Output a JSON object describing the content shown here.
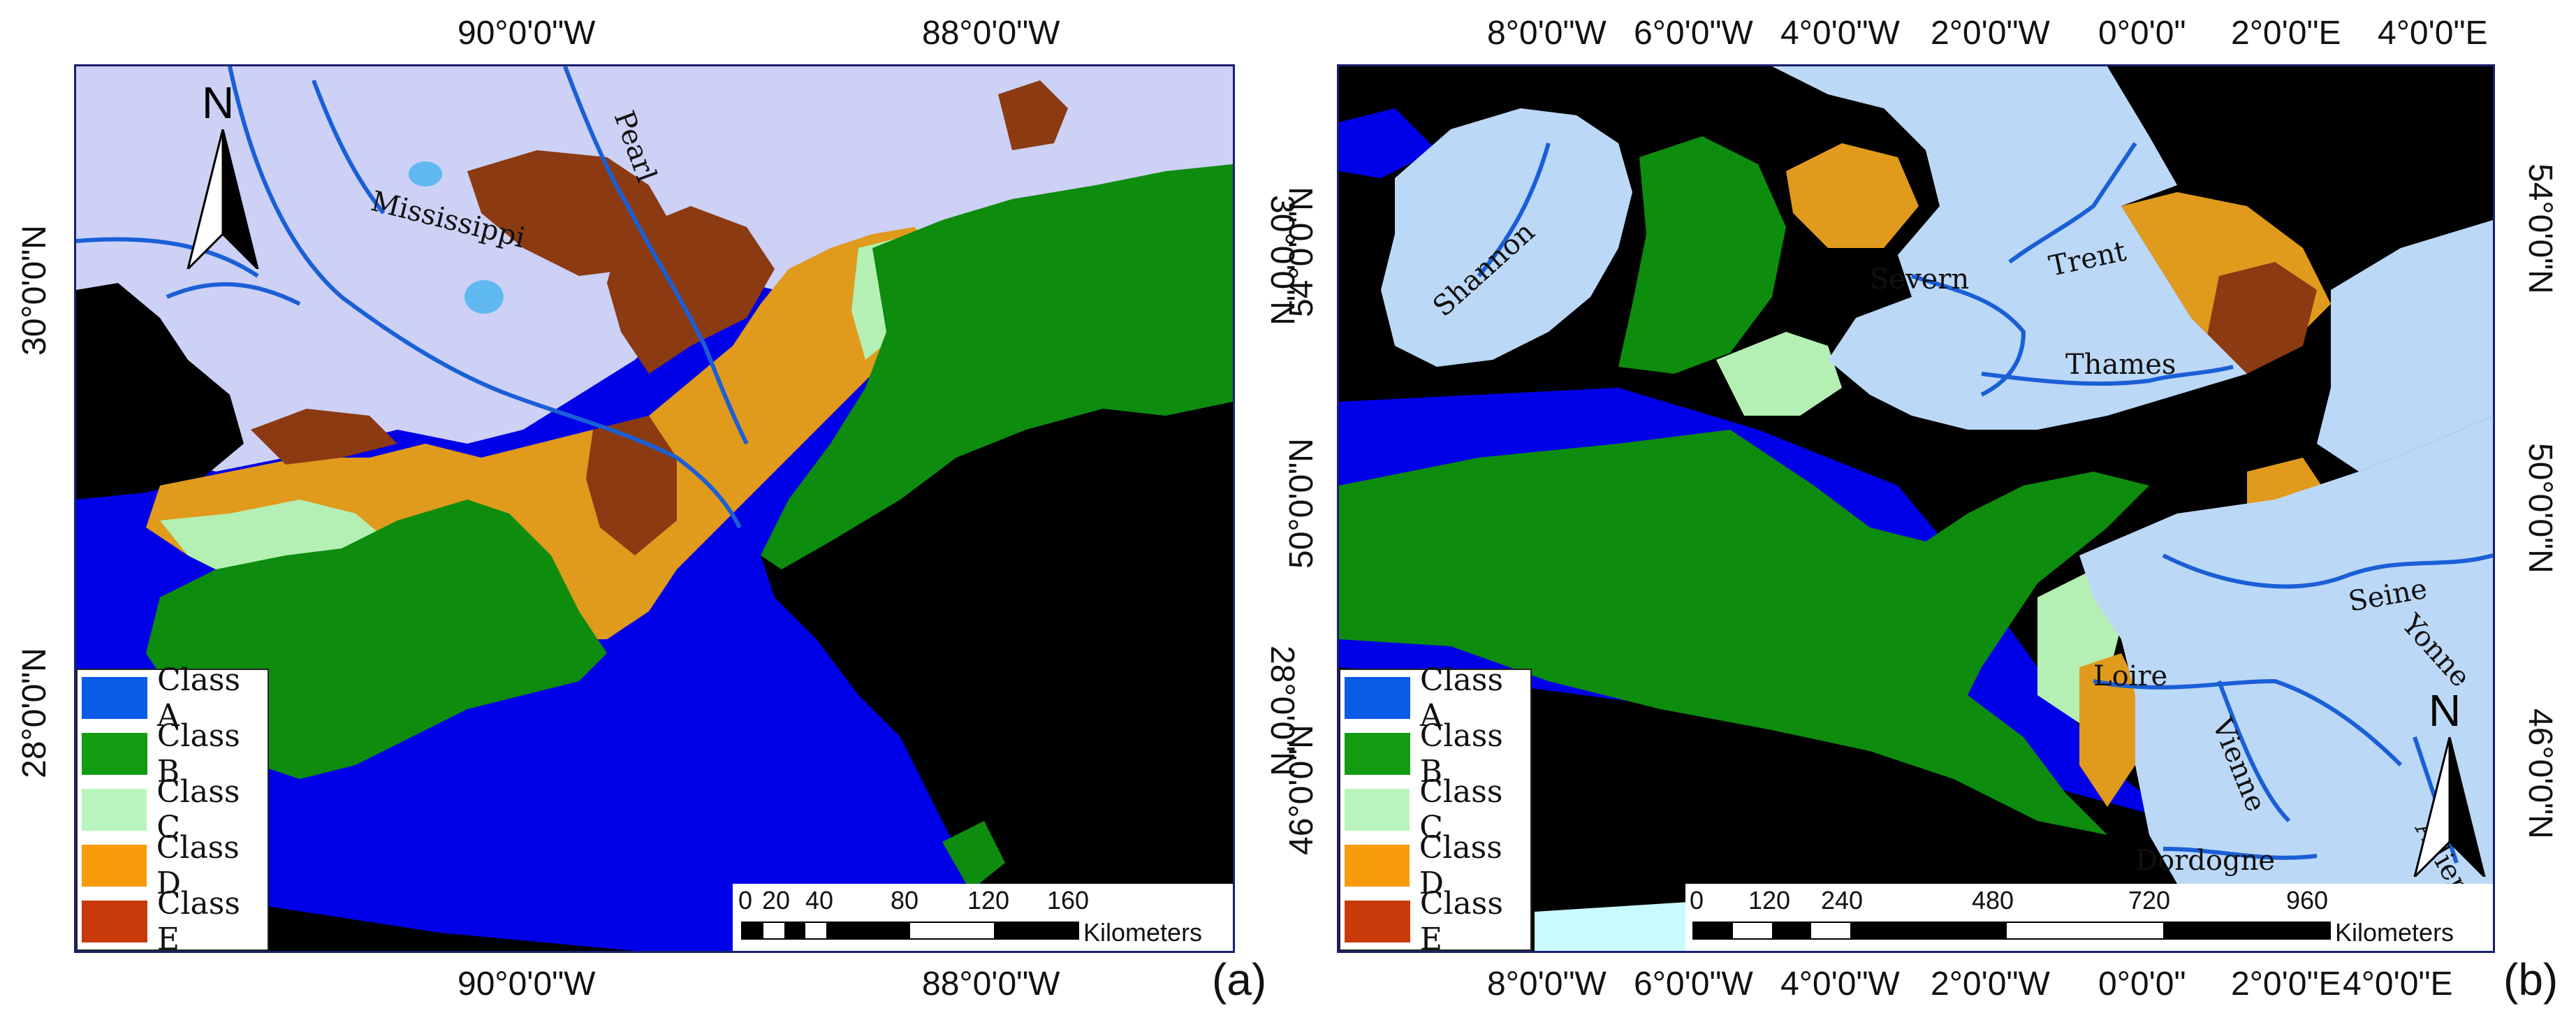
{
  "panel_a": {
    "tag": "(a)",
    "lon_labels": [
      "90°0'0\"W",
      "88°0'0\"W"
    ],
    "lat_labels": [
      "30°0'0\"N",
      "28°0'0\"N"
    ],
    "rivers": [
      "Pearl",
      "Mississippi"
    ],
    "north_label": "N",
    "scale": {
      "numbers": [
        "0",
        "20",
        "40",
        "80",
        "120",
        "160"
      ],
      "unit": "Kilometers"
    }
  },
  "panel_b": {
    "tag": "(b)",
    "lon_labels": [
      "8°0'0\"W",
      "6°0'0\"W",
      "4°0'0\"W",
      "2°0'0\"W",
      "0°0'0\"",
      "2°0'0\"E",
      "4°0'0\"E"
    ],
    "lat_labels": [
      "54°0'0\"N",
      "50°0'0\"N",
      "46°0'0\"N"
    ],
    "rivers": [
      "Shannon",
      "Severn",
      "Trent",
      "Thames",
      "Seine",
      "Yonne",
      "Loire",
      "Vienne",
      "Dordogne",
      "Allier"
    ],
    "north_label": "N",
    "scale": {
      "numbers": [
        "0",
        "120",
        "240",
        "480",
        "720",
        "960"
      ],
      "unit": "Kilometers"
    }
  },
  "legend": [
    {
      "label": "Class A",
      "color": "#0a5ce6"
    },
    {
      "label": "Class B",
      "color": "#119c11"
    },
    {
      "label": "Class C",
      "color": "#b8f5bc"
    },
    {
      "label": "Class D",
      "color": "#f79b0a"
    },
    {
      "label": "Class E",
      "color": "#c93a0a"
    }
  ],
  "colors": {
    "water": "#0000e8",
    "land_a": "#ccd1f5",
    "land_b": "#bcd8f7",
    "river": "#1a5fd6",
    "class_b_map": "#0d8c0d",
    "class_c_map": "#b4f0b4",
    "class_d_map": "#e09a1c",
    "class_e_map": "#8c3a12",
    "nodata": "#000000"
  }
}
